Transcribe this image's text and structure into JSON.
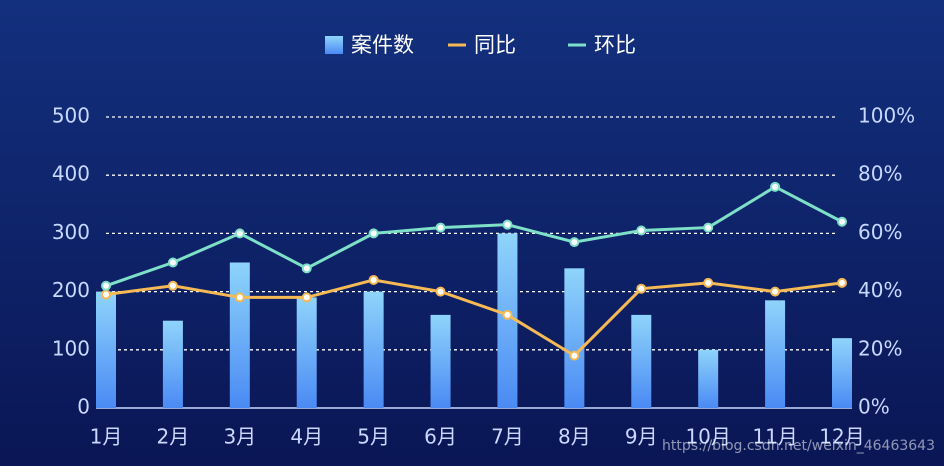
{
  "chart_data": {
    "type": "bar-line",
    "categories": [
      "1月",
      "2月",
      "3月",
      "4月",
      "5月",
      "6月",
      "7月",
      "8月",
      "9月",
      "10月",
      "11月",
      "12月"
    ],
    "series": [
      {
        "name": "案件数",
        "type": "bar",
        "color": "#4a8af4",
        "values": [
          200,
          150,
          250,
          190,
          200,
          160,
          300,
          240,
          160,
          100,
          185,
          120
        ]
      },
      {
        "name": "同比",
        "type": "line",
        "axis": "y2",
        "color": "#f5b955",
        "values": [
          39,
          42,
          38,
          38,
          44,
          40,
          32,
          18,
          41,
          43,
          40,
          43
        ]
      },
      {
        "name": "环比",
        "type": "line",
        "axis": "y2",
        "color": "#7ee0c8",
        "values": [
          42,
          50,
          60,
          48,
          60,
          62,
          63,
          57,
          61,
          62,
          76,
          64
        ]
      }
    ],
    "ylim": [
      0,
      500
    ],
    "yticks": [
      0,
      100,
      200,
      300,
      400,
      500
    ],
    "y2lim": [
      0,
      100
    ],
    "y2ticks": [
      {
        "value": 0,
        "label": "0%"
      },
      {
        "value": 20,
        "label": "20%"
      },
      {
        "value": 40,
        "label": "40%"
      },
      {
        "value": 60,
        "label": "60%"
      },
      {
        "value": 80,
        "label": "80%"
      },
      {
        "value": 100,
        "label": "100%"
      }
    ],
    "grid": true,
    "watermark": "https://blog.csdn.net/weixin_46463643"
  }
}
